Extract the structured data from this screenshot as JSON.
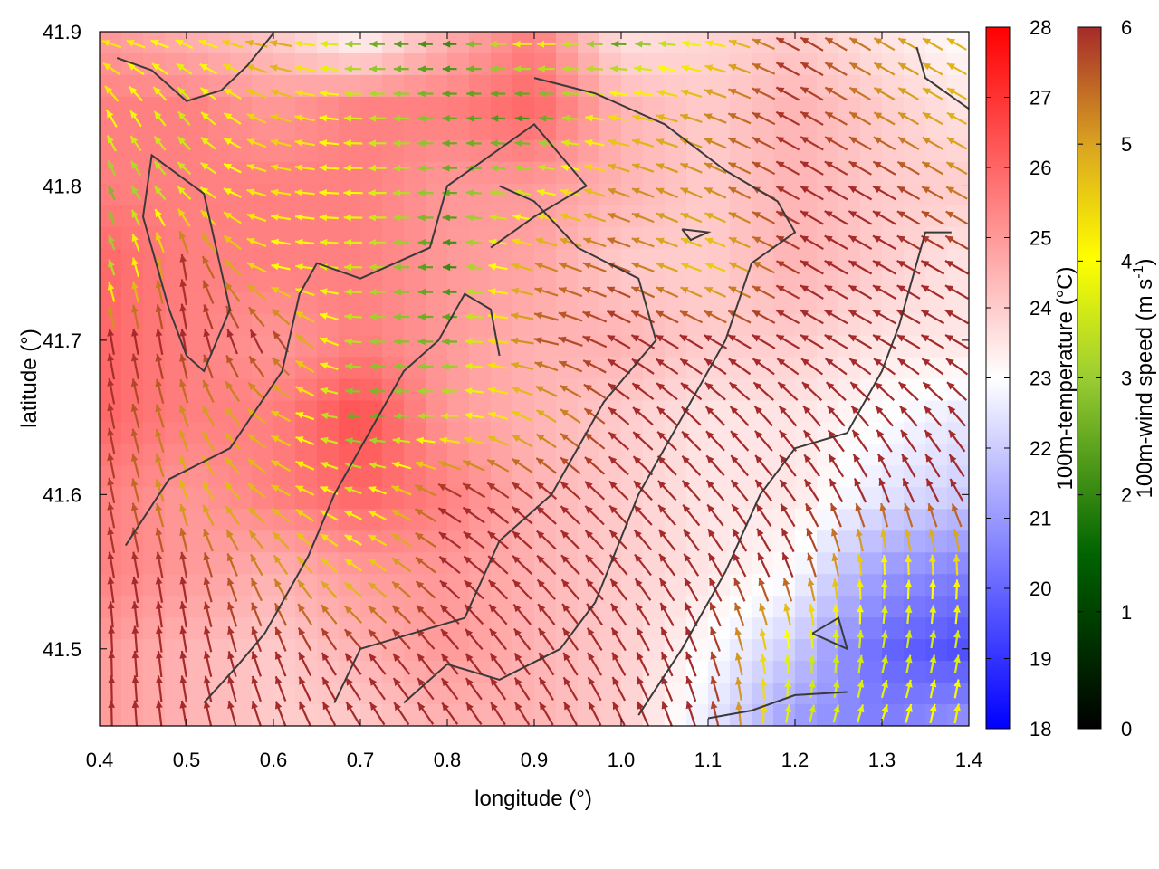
{
  "chart_data": {
    "type": "heatmap",
    "title": "",
    "xlabel": "longitude (°)",
    "ylabel": "latitude (°)",
    "xlim": [
      0.4,
      1.4
    ],
    "ylim": [
      41.45,
      41.9
    ],
    "x_ticks": [
      "0.4",
      "0.5",
      "0.6",
      "0.7",
      "0.8",
      "0.9",
      "1.0",
      "1.1",
      "1.2",
      "1.3",
      "1.4"
    ],
    "y_ticks": [
      "41.5",
      "41.6",
      "41.7",
      "41.8",
      "41.9"
    ],
    "grid": false,
    "fields": {
      "temperature": {
        "label": "100m-temperature (°C)",
        "range": [
          18,
          28
        ],
        "ticks": [
          "18",
          "19",
          "20",
          "21",
          "22",
          "23",
          "24",
          "25",
          "26",
          "27",
          "28"
        ],
        "colormap": [
          "#0000ff",
          "#ffffff",
          "#ff0000"
        ],
        "grid_lon": [
          0.4,
          0.5,
          0.6,
          0.7,
          0.8,
          0.9,
          1.0,
          1.1,
          1.2,
          1.3,
          1.4
        ],
        "grid_lat": [
          41.9,
          41.85,
          41.8,
          41.75,
          41.7,
          41.65,
          41.6,
          41.55,
          41.5,
          41.45
        ],
        "values": [
          [
            25.0,
            24.5,
            24.0,
            23.0,
            24.5,
            25.5,
            23.5,
            23.8,
            24.0,
            23.5,
            23.0
          ],
          [
            25.5,
            25.5,
            25.0,
            25.5,
            25.5,
            26.0,
            24.5,
            24.0,
            24.5,
            24.0,
            23.5
          ],
          [
            25.5,
            25.5,
            25.5,
            25.5,
            25.0,
            25.0,
            24.5,
            24.0,
            24.5,
            24.0,
            24.0
          ],
          [
            26.0,
            25.5,
            25.5,
            25.5,
            25.0,
            24.8,
            24.0,
            24.0,
            24.5,
            24.0,
            23.5
          ],
          [
            26.0,
            25.5,
            25.0,
            25.5,
            25.0,
            24.5,
            24.5,
            24.0,
            24.0,
            23.5,
            23.5
          ],
          [
            26.0,
            25.5,
            25.5,
            26.5,
            25.0,
            24.5,
            24.0,
            23.5,
            23.5,
            23.0,
            22.5
          ],
          [
            25.5,
            25.0,
            25.5,
            26.0,
            25.5,
            24.5,
            24.0,
            23.5,
            23.5,
            22.5,
            22.0
          ],
          [
            25.5,
            25.0,
            24.5,
            25.0,
            25.0,
            24.5,
            24.0,
            23.5,
            23.0,
            21.0,
            20.5
          ],
          [
            25.0,
            24.5,
            24.0,
            24.5,
            25.0,
            24.5,
            24.0,
            23.0,
            22.0,
            20.0,
            19.5
          ],
          [
            25.0,
            24.5,
            24.0,
            24.0,
            24.5,
            24.5,
            24.0,
            22.5,
            21.0,
            20.5,
            21.0
          ]
        ]
      },
      "wind": {
        "label": "100m-wind speed (m s-1)",
        "range": [
          0,
          6
        ],
        "ticks": [
          "0",
          "1",
          "2",
          "3",
          "4",
          "5",
          "6"
        ],
        "colormap": [
          "#000000",
          "#006400",
          "#9acd32",
          "#ffff00",
          "#daa520",
          "#a52a2a"
        ],
        "grid_lon": [
          0.4,
          0.5,
          0.6,
          0.7,
          0.8,
          0.9,
          1.0,
          1.1,
          1.2,
          1.3,
          1.4
        ],
        "grid_lat": [
          41.9,
          41.85,
          41.8,
          41.75,
          41.7,
          41.65,
          41.6,
          41.55,
          41.5,
          41.45
        ],
        "speed": [
          [
            4.0,
            3.5,
            5.0,
            2.0,
            1.5,
            4.0,
            1.5,
            3.5,
            6.0,
            5.0,
            4.5
          ],
          [
            4.0,
            3.0,
            4.5,
            3.0,
            2.0,
            1.5,
            4.0,
            5.0,
            6.0,
            5.0,
            4.5
          ],
          [
            2.0,
            3.0,
            4.0,
            3.5,
            2.0,
            3.0,
            5.0,
            5.0,
            6.0,
            6.0,
            5.0
          ],
          [
            2.0,
            6.0,
            3.5,
            3.0,
            1.5,
            5.0,
            5.5,
            4.0,
            6.0,
            6.0,
            6.0
          ],
          [
            6.0,
            6.0,
            6.0,
            2.5,
            2.0,
            5.5,
            6.0,
            6.0,
            6.0,
            6.0,
            6.0
          ],
          [
            6.0,
            5.0,
            4.5,
            1.8,
            3.0,
            4.5,
            6.0,
            6.0,
            6.0,
            6.0,
            6.0
          ],
          [
            6.0,
            4.5,
            4.5,
            3.0,
            6.0,
            6.0,
            6.0,
            6.0,
            6.0,
            6.0,
            6.0
          ],
          [
            6.0,
            6.0,
            5.0,
            4.0,
            6.0,
            6.0,
            6.0,
            6.0,
            6.0,
            3.5,
            4.0
          ],
          [
            6.0,
            6.0,
            6.0,
            6.0,
            6.0,
            6.0,
            6.0,
            6.0,
            3.0,
            3.0,
            3.0
          ],
          [
            6.0,
            6.0,
            6.0,
            6.0,
            6.0,
            6.0,
            6.0,
            6.0,
            3.0,
            3.5,
            4.0
          ]
        ],
        "direction_deg": [
          [
            170,
            160,
            170,
            180,
            180,
            180,
            180,
            170,
            150,
            150,
            150
          ],
          [
            120,
            130,
            160,
            180,
            180,
            180,
            170,
            160,
            150,
            150,
            150
          ],
          [
            110,
            140,
            170,
            180,
            180,
            170,
            160,
            155,
            150,
            150,
            150
          ],
          [
            110,
            100,
            170,
            180,
            180,
            160,
            160,
            160,
            150,
            150,
            150
          ],
          [
            100,
            100,
            120,
            180,
            180,
            170,
            150,
            150,
            150,
            150,
            150
          ],
          [
            100,
            110,
            150,
            180,
            180,
            150,
            140,
            135,
            130,
            130,
            130
          ],
          [
            100,
            110,
            150,
            160,
            150,
            140,
            135,
            130,
            125,
            110,
            120
          ],
          [
            100,
            100,
            120,
            145,
            140,
            135,
            130,
            120,
            110,
            90,
            90
          ],
          [
            90,
            100,
            110,
            130,
            130,
            125,
            120,
            110,
            95,
            80,
            80
          ],
          [
            90,
            100,
            110,
            120,
            125,
            120,
            115,
            105,
            75,
            70,
            80
          ]
        ]
      }
    },
    "contours": [
      [
        [
          0.42,
          41.883
        ],
        [
          0.46,
          41.875
        ],
        [
          0.5,
          41.855
        ],
        [
          0.54,
          41.862
        ],
        [
          0.57,
          41.878
        ],
        [
          0.6,
          41.899
        ]
      ],
      [
        [
          0.5,
          41.69
        ],
        [
          0.48,
          41.72
        ],
        [
          0.45,
          41.78
        ],
        [
          0.46,
          41.82
        ],
        [
          0.52,
          41.795
        ],
        [
          0.55,
          41.72
        ],
        [
          0.52,
          41.68
        ],
        [
          0.5,
          41.69
        ]
      ],
      [
        [
          0.43,
          41.567
        ],
        [
          0.48,
          41.61
        ],
        [
          0.55,
          41.63
        ],
        [
          0.61,
          41.68
        ],
        [
          0.63,
          41.73
        ],
        [
          0.65,
          41.75
        ],
        [
          0.7,
          41.74
        ],
        [
          0.78,
          41.76
        ],
        [
          0.8,
          41.8
        ],
        [
          0.85,
          41.82
        ],
        [
          0.9,
          41.84
        ],
        [
          0.96,
          41.8
        ],
        [
          0.9,
          41.78
        ],
        [
          0.85,
          41.76
        ]
      ],
      [
        [
          0.52,
          41.465
        ],
        [
          0.56,
          41.49
        ],
        [
          0.59,
          41.51
        ],
        [
          0.62,
          41.54
        ],
        [
          0.64,
          41.56
        ],
        [
          0.67,
          41.6
        ],
        [
          0.7,
          41.63
        ],
        [
          0.75,
          41.68
        ],
        [
          0.79,
          41.7
        ],
        [
          0.82,
          41.73
        ],
        [
          0.85,
          41.72
        ],
        [
          0.86,
          41.69
        ]
      ],
      [
        [
          0.67,
          41.465
        ],
        [
          0.7,
          41.5
        ],
        [
          0.76,
          41.51
        ],
        [
          0.82,
          41.52
        ],
        [
          0.86,
          41.57
        ],
        [
          0.92,
          41.6
        ],
        [
          0.98,
          41.66
        ],
        [
          1.04,
          41.7
        ],
        [
          1.02,
          41.74
        ],
        [
          0.95,
          41.76
        ],
        [
          0.9,
          41.79
        ],
        [
          0.86,
          41.8
        ]
      ],
      [
        [
          0.75,
          41.465
        ],
        [
          0.8,
          41.49
        ],
        [
          0.86,
          41.48
        ],
        [
          0.93,
          41.5
        ],
        [
          0.97,
          41.53
        ],
        [
          1.02,
          41.6
        ],
        [
          1.08,
          41.66
        ],
        [
          1.12,
          41.7
        ],
        [
          1.15,
          41.75
        ],
        [
          1.2,
          41.77
        ],
        [
          1.18,
          41.79
        ],
        [
          1.12,
          41.81
        ],
        [
          1.05,
          41.84
        ],
        [
          0.97,
          41.86
        ],
        [
          0.9,
          41.87
        ]
      ],
      [
        [
          1.02,
          41.457
        ],
        [
          1.07,
          41.5
        ],
        [
          1.12,
          41.55
        ],
        [
          1.16,
          41.6
        ],
        [
          1.2,
          41.63
        ],
        [
          1.26,
          41.64
        ],
        [
          1.3,
          41.68
        ],
        [
          1.32,
          41.71
        ],
        [
          1.35,
          41.77
        ],
        [
          1.38,
          41.77
        ]
      ],
      [
        [
          1.1,
          41.455
        ],
        [
          1.15,
          41.46
        ],
        [
          1.2,
          41.47
        ],
        [
          1.26,
          41.472
        ]
      ],
      [
        [
          1.07,
          41.772
        ],
        [
          1.1,
          41.77
        ],
        [
          1.08,
          41.765
        ],
        [
          1.07,
          41.772
        ]
      ],
      [
        [
          1.22,
          41.51
        ],
        [
          1.25,
          41.52
        ],
        [
          1.26,
          41.5
        ],
        [
          1.22,
          41.51
        ]
      ],
      [
        [
          1.34,
          41.89
        ],
        [
          1.35,
          41.87
        ],
        [
          1.4,
          41.85
        ]
      ]
    ]
  }
}
